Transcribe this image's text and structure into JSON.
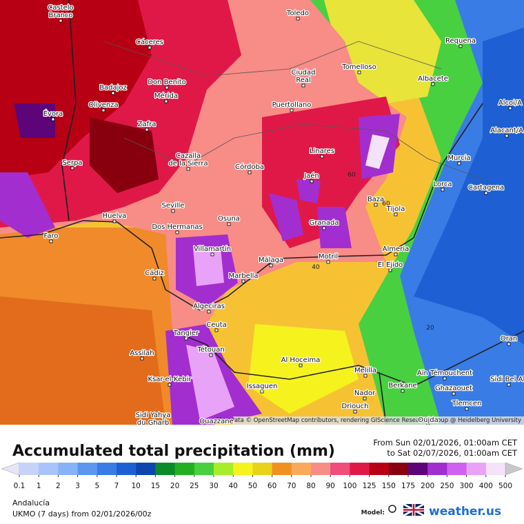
{
  "header": {
    "title": "Accumulated total precipitation (mm)",
    "date_from": "From Sun 02/01/2026, 01:00am CET",
    "date_to": "to Sat 02/07/2026, 01:00am CET"
  },
  "attribution": "Map data © OpenStreetMap contributors, rendering GIScience Research Group @ Heidelberg University",
  "legend": {
    "values": [
      0.1,
      1,
      2,
      3,
      5,
      7,
      10,
      15,
      20,
      25,
      30,
      40,
      50,
      60,
      70,
      80,
      90,
      100,
      125,
      150,
      175,
      200,
      250,
      300,
      400,
      500
    ],
    "colors": [
      "#e6e6f6",
      "#c6d2f8",
      "#a8c4fa",
      "#86b2f8",
      "#5c96f0",
      "#3a7ce6",
      "#1e60d4",
      "#0e46b0",
      "#0a8a2a",
      "#22b022",
      "#48d040",
      "#a6ee2a",
      "#f6f21e",
      "#e8d21a",
      "#f09020",
      "#f8aa5a",
      "#f88c86",
      "#f04c7c",
      "#e01848",
      "#b80014",
      "#88000e",
      "#5c0478",
      "#a22ed0",
      "#d060f0",
      "#e8a2f8",
      "#f4e2fa",
      "#c8c8c8"
    ]
  },
  "cities": [
    [
      "Toledo"
    ],
    [
      "Castelo",
      "Branco"
    ],
    [
      "Cáceres"
    ],
    [
      "Requena"
    ],
    [
      "Tomelloso"
    ],
    [
      "Ciudad",
      "Real"
    ],
    [
      "Badajoz"
    ],
    [
      "Don Benito"
    ],
    [
      "Mérida"
    ],
    [
      "Albacete"
    ],
    [
      "Olivenza"
    ],
    [
      "Évora"
    ],
    [
      "Puertollano"
    ],
    [
      "Alcoi/A"
    ],
    [
      "Zafra"
    ],
    [
      "Alacant/A"
    ],
    [
      "Linares"
    ],
    [
      "Murcia"
    ],
    [
      "Serpa"
    ],
    [
      "Cazalla",
      "de la Sierra"
    ],
    [
      "Córdoba"
    ],
    [
      "Jaén"
    ],
    [
      "Lorca"
    ],
    [
      "Cartagena"
    ],
    [
      "Baza"
    ],
    [
      "Tíjola"
    ],
    [
      "Seville"
    ],
    [
      "Huelva"
    ],
    [
      "Osuna"
    ],
    [
      "Granada"
    ],
    [
      "Dos Hermanas"
    ],
    [
      "Faro"
    ],
    [
      "Almeria"
    ],
    [
      "Villamartín"
    ],
    [
      "Málaga"
    ],
    [
      "Motril"
    ],
    [
      "El Ejido"
    ],
    [
      "Cádiz"
    ],
    [
      "Marbella"
    ],
    [
      "Algeciras"
    ],
    [
      "Ceuta"
    ],
    [
      "Tangier"
    ],
    [
      "Oran"
    ],
    [
      "Assilah"
    ],
    [
      "Tétouan"
    ],
    [
      "Al Hoceima"
    ],
    [
      "Melilla"
    ],
    [
      "Aïn Témouchent"
    ],
    [
      "Ksar-el-Kebir"
    ],
    [
      "Sidi Bel Ab"
    ],
    [
      "Issaguen"
    ],
    [
      "Berkane"
    ],
    [
      "Nador"
    ],
    [
      "Ghazaouet"
    ],
    [
      "Driouch"
    ],
    [
      "Sidi Yahya",
      "du Gharb"
    ],
    [
      "Tlemcen"
    ],
    [
      "Ouazzane"
    ],
    [
      "Oujda"
    ]
  ],
  "contour_labels": [
    "60",
    "60",
    "40",
    "20"
  ],
  "footer": {
    "region": "Andalucía",
    "model": "UKMO (7 days) from 02/01/2026/00z",
    "model_label": "Model:",
    "brand": "weather.us"
  }
}
